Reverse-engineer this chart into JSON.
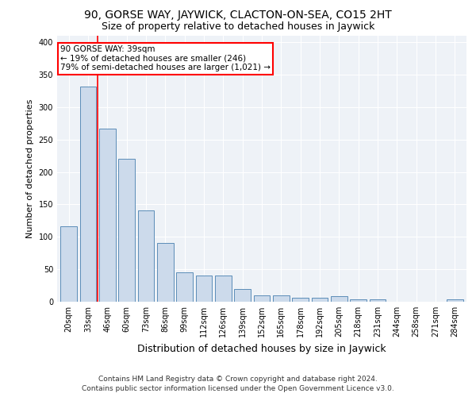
{
  "title": "90, GORSE WAY, JAYWICK, CLACTON-ON-SEA, CO15 2HT",
  "subtitle": "Size of property relative to detached houses in Jaywick",
  "xlabel": "Distribution of detached houses by size in Jaywick",
  "ylabel": "Number of detached properties",
  "footer_line1": "Contains HM Land Registry data © Crown copyright and database right 2024.",
  "footer_line2": "Contains public sector information licensed under the Open Government Licence v3.0.",
  "categories": [
    "20sqm",
    "33sqm",
    "46sqm",
    "60sqm",
    "73sqm",
    "86sqm",
    "99sqm",
    "112sqm",
    "126sqm",
    "139sqm",
    "152sqm",
    "165sqm",
    "178sqm",
    "192sqm",
    "205sqm",
    "218sqm",
    "231sqm",
    "244sqm",
    "258sqm",
    "271sqm",
    "284sqm"
  ],
  "values": [
    116,
    332,
    267,
    220,
    141,
    91,
    45,
    41,
    41,
    20,
    10,
    10,
    6,
    6,
    8,
    4,
    4,
    0,
    0,
    0,
    4
  ],
  "bar_color": "#ccdaeb",
  "bar_edge_color": "#5b8db8",
  "redline_x": 1.5,
  "annotation_line1": "90 GORSE WAY: 39sqm",
  "annotation_line2": "← 19% of detached houses are smaller (246)",
  "annotation_line3": "79% of semi-detached houses are larger (1,021) →",
  "annotation_box_color": "white",
  "annotation_box_edge_color": "red",
  "ylim": [
    0,
    410
  ],
  "yticks": [
    0,
    50,
    100,
    150,
    200,
    250,
    300,
    350,
    400
  ],
  "background_color": "#eef2f7",
  "grid_color": "white",
  "title_fontsize": 10,
  "subtitle_fontsize": 9,
  "xlabel_fontsize": 9,
  "ylabel_fontsize": 8,
  "tick_fontsize": 7,
  "annotation_fontsize": 7.5,
  "footer_fontsize": 6.5
}
